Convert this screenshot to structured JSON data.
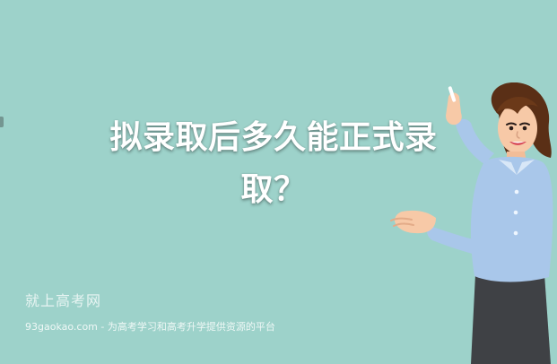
{
  "title": {
    "line1": "拟录取后多久能正式录",
    "line2": "取？"
  },
  "watermark": {
    "brand": "就上高考网",
    "tagline": "93gaokao.com - 为高考学习和高考升学提供资源的平台"
  },
  "colors": {
    "background": "#9dd2ca",
    "title_text": "#ffffff",
    "blouse": "#a9c7ea",
    "skirt": "#3f4145",
    "hair": "#5a2f16",
    "skin": "#f7c9a7"
  },
  "icons": {
    "teacher": "teacher-illustration-icon"
  }
}
